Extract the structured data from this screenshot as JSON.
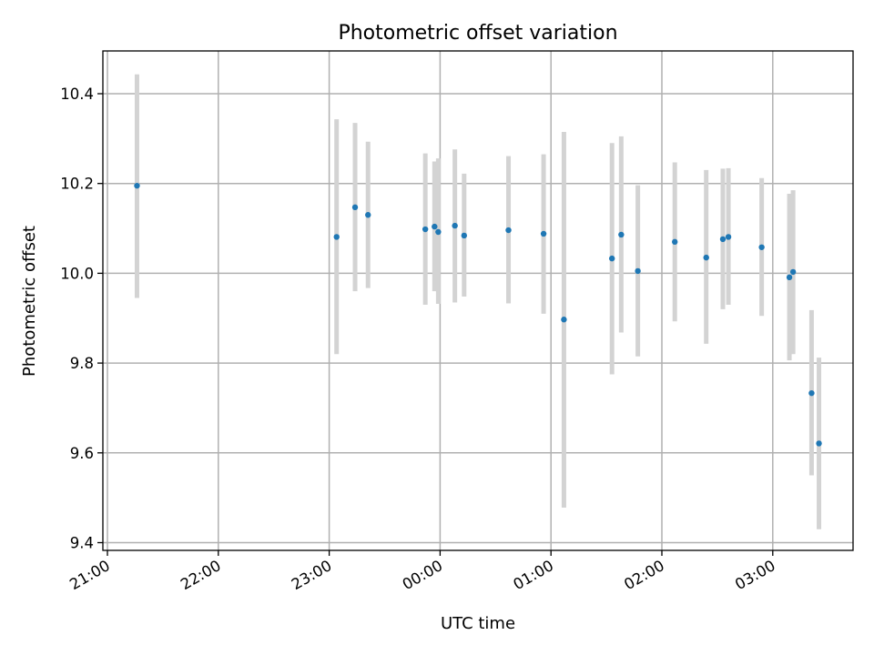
{
  "chart_data": {
    "type": "scatter",
    "title": "Photometric offset variation",
    "xlabel": "UTC time",
    "ylabel": "Photometric offset",
    "x_tick_labels": [
      "21:00",
      "22:00",
      "23:00",
      "00:00",
      "01:00",
      "02:00",
      "03:00"
    ],
    "y_tick_labels": [
      "9.4",
      "9.6",
      "9.8",
      "10.0",
      "10.2",
      "10.4"
    ],
    "grid": true,
    "colors": {
      "points": "#1f77b4",
      "error_bars": "#d3d3d3",
      "grid": "#b0b0b0"
    },
    "points": [
      {
        "time": "21:16",
        "value": 10.195,
        "err_low": 9.945,
        "err_high": 10.443
      },
      {
        "time": "23:04",
        "value": 10.081,
        "err_low": 9.82,
        "err_high": 10.343
      },
      {
        "time": "23:14",
        "value": 10.147,
        "err_low": 9.96,
        "err_high": 10.335
      },
      {
        "time": "23:21",
        "value": 10.13,
        "err_low": 9.967,
        "err_high": 10.293
      },
      {
        "time": "23:52",
        "value": 10.098,
        "err_low": 9.93,
        "err_high": 10.267
      },
      {
        "time": "23:57",
        "value": 10.104,
        "err_low": 9.96,
        "err_high": 10.249
      },
      {
        "time": "23:59",
        "value": 10.092,
        "err_low": 9.932,
        "err_high": 10.256
      },
      {
        "time": "00:08",
        "value": 10.106,
        "err_low": 9.935,
        "err_high": 10.276
      },
      {
        "time": "00:13",
        "value": 10.084,
        "err_low": 9.948,
        "err_high": 10.222
      },
      {
        "time": "00:37",
        "value": 10.096,
        "err_low": 9.933,
        "err_high": 10.261
      },
      {
        "time": "00:56",
        "value": 10.088,
        "err_low": 9.91,
        "err_high": 10.265
      },
      {
        "time": "01:07",
        "value": 9.897,
        "err_low": 9.478,
        "err_high": 10.315
      },
      {
        "time": "01:33",
        "value": 10.033,
        "err_low": 9.775,
        "err_high": 10.29
      },
      {
        "time": "01:38",
        "value": 10.086,
        "err_low": 9.868,
        "err_high": 10.305
      },
      {
        "time": "01:47",
        "value": 10.005,
        "err_low": 9.815,
        "err_high": 10.196
      },
      {
        "time": "02:07",
        "value": 10.07,
        "err_low": 9.893,
        "err_high": 10.247
      },
      {
        "time": "02:24",
        "value": 10.035,
        "err_low": 9.843,
        "err_high": 10.23
      },
      {
        "time": "02:33",
        "value": 10.076,
        "err_low": 9.92,
        "err_high": 10.233
      },
      {
        "time": "02:36",
        "value": 10.081,
        "err_low": 9.93,
        "err_high": 10.234
      },
      {
        "time": "02:54",
        "value": 10.058,
        "err_low": 9.905,
        "err_high": 10.212
      },
      {
        "time": "03:09",
        "value": 9.991,
        "err_low": 9.806,
        "err_high": 10.177
      },
      {
        "time": "03:11",
        "value": 10.003,
        "err_low": 9.82,
        "err_high": 10.185
      },
      {
        "time": "03:21",
        "value": 9.733,
        "err_low": 9.55,
        "err_high": 9.918
      },
      {
        "time": "03:25",
        "value": 9.621,
        "err_low": 9.43,
        "err_high": 9.812
      }
    ]
  }
}
